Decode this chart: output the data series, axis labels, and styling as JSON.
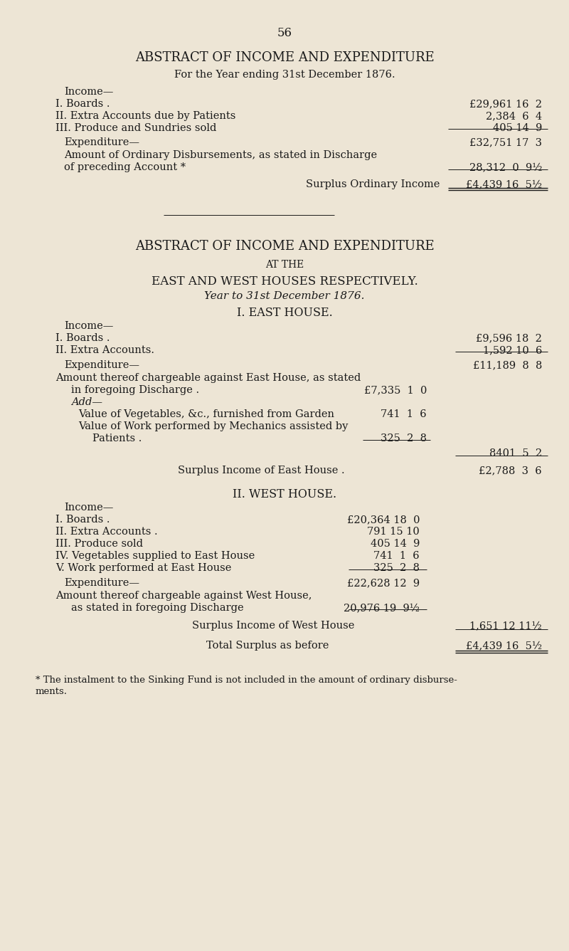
{
  "bg_color": "#ede5d5",
  "text_color": "#1a1a1a",
  "page_number": "56",
  "s1_title": "ABSTRACT OF INCOME AND EXPENDITURE",
  "s1_sub": "For the Year ending 31st December 1876.",
  "s1_income_label": "Income—",
  "s1_i1_label": "I. Boards .",
  "s1_i1_val": "£29,961 16  2",
  "s1_i2_label": "II. Extra Accounts due by Patients",
  "s1_i2_val": "2,384  6  4",
  "s1_i3_label": "III. Produce and Sundries sold",
  "s1_i3_val": "405 14  9",
  "s1_exp_label": "Expenditure—",
  "s1_exp_total": "£32,751 17  3",
  "s1_exp_line1": "Amount of Ordinary Disbursements, as stated in Discharge",
  "s1_exp_line2": "of preceding Account *",
  "s1_exp_val": "28,312  0  9½",
  "s1_surplus_label": "Surplus Ordinary Income",
  "s1_surplus_val": "£4,439 16  5½",
  "s2_title": "ABSTRACT OF INCOME AND EXPENDITURE",
  "s2_at_the": "AT THE",
  "s2_sub2": "EAST AND WEST HOUSES RESPECTIVELY.",
  "s2_sub3": "Year to 31st December 1876.",
  "s2_east_title": "I. EAST HOUSE.",
  "s2_east_income_label": "Income—",
  "s2_e_i1_label": "I. Boards .",
  "s2_e_i1_val": "£9,596 18  2",
  "s2_e_i2_label": "II. Extra Accounts.",
  "s2_e_i2_val": "1,592 10  6",
  "s2_east_exp_label": "Expenditure—",
  "s2_east_exp_total": "£11,189  8  8",
  "s2_east_exp_line1": "Amount thereof chargeable against East House, as stated",
  "s2_east_exp_line2": "in foregoing Discharge .",
  "s2_east_exp_line2_val": "£7,335  1  0",
  "s2_east_add": "Add—",
  "s2_east_veg_label": "Value of Vegetables, &c., furnished from Garden",
  "s2_east_veg_val": "741  1  6",
  "s2_east_work_label": "Value of Work performed by Mechanics assisted by",
  "s2_east_patients_label": "Patients .",
  "s2_east_patients_val": "325  2  8",
  "s2_east_subtotal": "8401  5  2",
  "s2_east_surplus_label": "Surplus Income of East House .",
  "s2_east_surplus_val": "£2,788  3  6",
  "s2_west_title": "II. WEST HOUSE.",
  "s2_west_income_label": "Income—",
  "s2_w_i1_label": "I. Boards .",
  "s2_w_i1_val": "£20,364 18  0",
  "s2_w_i2_label": "II. Extra Accounts .",
  "s2_w_i2_val": "791 15 10",
  "s2_w_i3_label": "III. Produce sold",
  "s2_w_i3_val": "405 14  9",
  "s2_w_i4_label": "IV. Vegetables supplied to East House",
  "s2_w_i4_val": "741  1  6",
  "s2_w_i5_label": "V. Work performed at East House",
  "s2_w_i5_val": "325  2  8",
  "s2_west_exp_label": "Expenditure—",
  "s2_west_exp_total": "£22,628 12  9",
  "s2_west_exp_line1": "Amount thereof chargeable against West House,",
  "s2_west_exp_line2": "as stated in foregoing Discharge",
  "s2_west_exp_val": "20,976 19  9½",
  "s2_west_surplus_label": "Surplus Income of West House",
  "s2_west_surplus_val": "1,651 12 11½",
  "s2_total_label": "Total Surplus as before",
  "s2_total_val": "£4,439 16  5½",
  "footnote_line1": "* The instalment to the Sinking Fund is not included in the amount of ordinary disburse-",
  "footnote_line2": "ments."
}
